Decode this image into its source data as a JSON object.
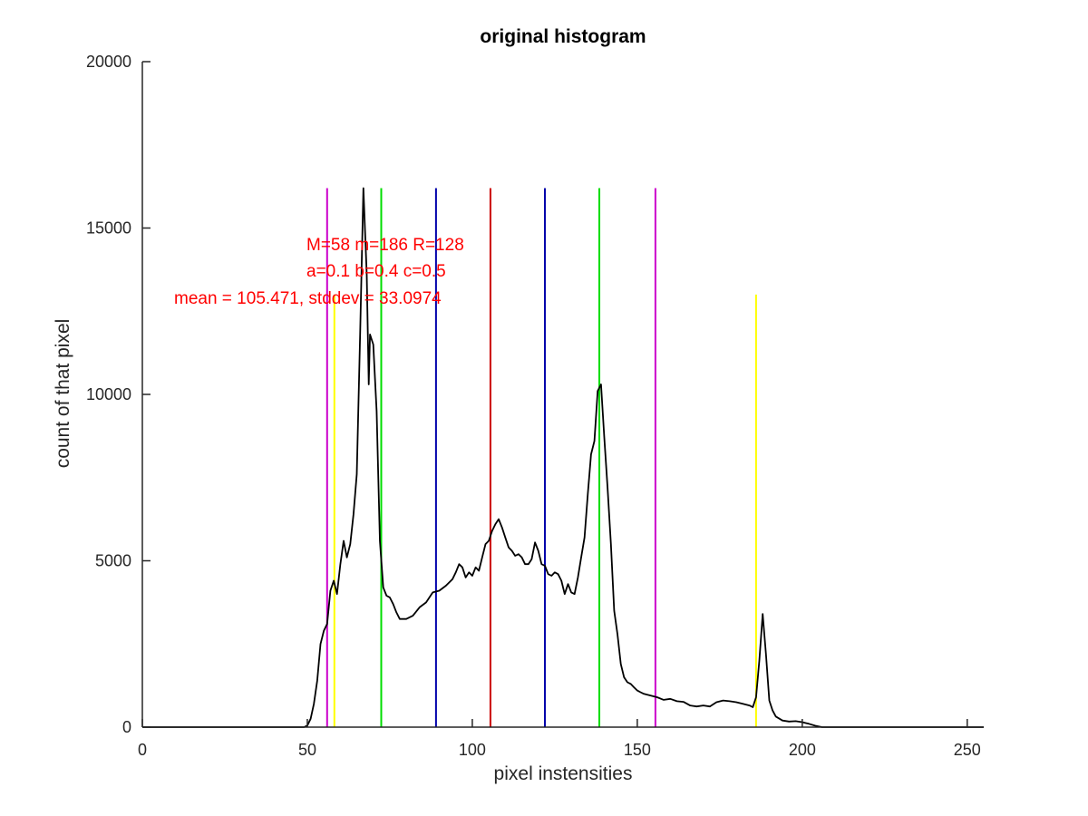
{
  "chart_data": {
    "type": "line",
    "title": "original histogram",
    "xlabel": "pixel instensities",
    "ylabel": "count of that pixel",
    "xlim": [
      0,
      255
    ],
    "ylim": [
      0,
      20000
    ],
    "x_ticks": [
      0,
      50,
      100,
      150,
      200,
      250
    ],
    "y_ticks": [
      0,
      5000,
      10000,
      15000,
      20000
    ],
    "grid": false,
    "series": [
      {
        "color": "#000000",
        "points": [
          [
            0,
            0
          ],
          [
            49,
            0
          ],
          [
            50,
            50
          ],
          [
            51,
            250
          ],
          [
            52,
            700
          ],
          [
            53,
            1400
          ],
          [
            54,
            2500
          ],
          [
            55,
            2900
          ],
          [
            56,
            3100
          ],
          [
            57,
            4100
          ],
          [
            58,
            4400
          ],
          [
            59,
            4000
          ],
          [
            60,
            4900
          ],
          [
            61,
            5600
          ],
          [
            62,
            5100
          ],
          [
            63,
            5500
          ],
          [
            64,
            6400
          ],
          [
            65,
            7600
          ],
          [
            66,
            11800
          ],
          [
            67,
            16200
          ],
          [
            68,
            13600
          ],
          [
            68.6,
            10300
          ],
          [
            69,
            11800
          ],
          [
            70,
            11500
          ],
          [
            71,
            9500
          ],
          [
            72,
            5600
          ],
          [
            73,
            4200
          ],
          [
            74,
            3950
          ],
          [
            75,
            3900
          ],
          [
            76,
            3700
          ],
          [
            77,
            3450
          ],
          [
            78,
            3250
          ],
          [
            80,
            3250
          ],
          [
            82,
            3350
          ],
          [
            84,
            3600
          ],
          [
            86,
            3750
          ],
          [
            88,
            4050
          ],
          [
            90,
            4100
          ],
          [
            92,
            4250
          ],
          [
            94,
            4450
          ],
          [
            95,
            4650
          ],
          [
            96,
            4900
          ],
          [
            97,
            4800
          ],
          [
            98,
            4500
          ],
          [
            99,
            4650
          ],
          [
            100,
            4550
          ],
          [
            101,
            4800
          ],
          [
            102,
            4700
          ],
          [
            103,
            5100
          ],
          [
            104,
            5500
          ],
          [
            105,
            5600
          ],
          [
            106,
            5900
          ],
          [
            107,
            6100
          ],
          [
            108,
            6250
          ],
          [
            109,
            6000
          ],
          [
            110,
            5700
          ],
          [
            111,
            5400
          ],
          [
            112,
            5300
          ],
          [
            113,
            5150
          ],
          [
            114,
            5200
          ],
          [
            115,
            5100
          ],
          [
            116,
            4900
          ],
          [
            117,
            4900
          ],
          [
            118,
            5050
          ],
          [
            119,
            5550
          ],
          [
            120,
            5300
          ],
          [
            121,
            4900
          ],
          [
            122,
            4850
          ],
          [
            123,
            4600
          ],
          [
            124,
            4550
          ],
          [
            125,
            4650
          ],
          [
            126,
            4600
          ],
          [
            127,
            4400
          ],
          [
            128,
            4000
          ],
          [
            129,
            4300
          ],
          [
            130,
            4050
          ],
          [
            131,
            4000
          ],
          [
            132,
            4500
          ],
          [
            133,
            5100
          ],
          [
            134,
            5700
          ],
          [
            135,
            7000
          ],
          [
            136,
            8200
          ],
          [
            137,
            8600
          ],
          [
            138,
            10100
          ],
          [
            139,
            10300
          ],
          [
            140,
            8700
          ],
          [
            141,
            7200
          ],
          [
            142,
            5500
          ],
          [
            143,
            3500
          ],
          [
            144,
            2800
          ],
          [
            145,
            1900
          ],
          [
            146,
            1500
          ],
          [
            147,
            1350
          ],
          [
            148,
            1300
          ],
          [
            149,
            1200
          ],
          [
            150,
            1100
          ],
          [
            151,
            1050
          ],
          [
            152,
            1000
          ],
          [
            154,
            950
          ],
          [
            156,
            900
          ],
          [
            158,
            820
          ],
          [
            160,
            850
          ],
          [
            162,
            780
          ],
          [
            164,
            760
          ],
          [
            166,
            650
          ],
          [
            168,
            620
          ],
          [
            170,
            650
          ],
          [
            172,
            620
          ],
          [
            174,
            750
          ],
          [
            176,
            800
          ],
          [
            178,
            780
          ],
          [
            180,
            750
          ],
          [
            182,
            700
          ],
          [
            184,
            650
          ],
          [
            185,
            600
          ],
          [
            186,
            900
          ],
          [
            187,
            2000
          ],
          [
            188,
            3400
          ],
          [
            189,
            2200
          ],
          [
            190,
            800
          ],
          [
            191,
            500
          ],
          [
            192,
            320
          ],
          [
            194,
            200
          ],
          [
            196,
            170
          ],
          [
            198,
            180
          ],
          [
            200,
            150
          ],
          [
            202,
            100
          ],
          [
            204,
            40
          ],
          [
            206,
            0
          ],
          [
            255,
            0
          ]
        ]
      }
    ],
    "vertical_lines": [
      {
        "x": 56,
        "y_top": 16200,
        "color": "#cc00cc"
      },
      {
        "x": 155.5,
        "y_top": 16200,
        "color": "#cc00cc"
      },
      {
        "x": 58.2,
        "y_top": 13000,
        "color": "#ffff00"
      },
      {
        "x": 186,
        "y_top": 13000,
        "color": "#ffff00"
      },
      {
        "x": 72.4,
        "y_top": 16200,
        "color": "#00dd00"
      },
      {
        "x": 138.5,
        "y_top": 16200,
        "color": "#00dd00"
      },
      {
        "x": 89,
        "y_top": 16200,
        "color": "#0000aa"
      },
      {
        "x": 122,
        "y_top": 16200,
        "color": "#0000aa"
      },
      {
        "x": 105.5,
        "y_top": 16200,
        "color": "#cc0000"
      }
    ],
    "annotations": [
      {
        "text": "M=58 m=186 R=128",
        "color": "#ff0000"
      },
      {
        "text": "a=0.1 b=0.4 c=0.5",
        "color": "#ff0000"
      },
      {
        "text": "mean = 105.471, stddev = 33.0974",
        "color": "#ff0000"
      }
    ]
  }
}
